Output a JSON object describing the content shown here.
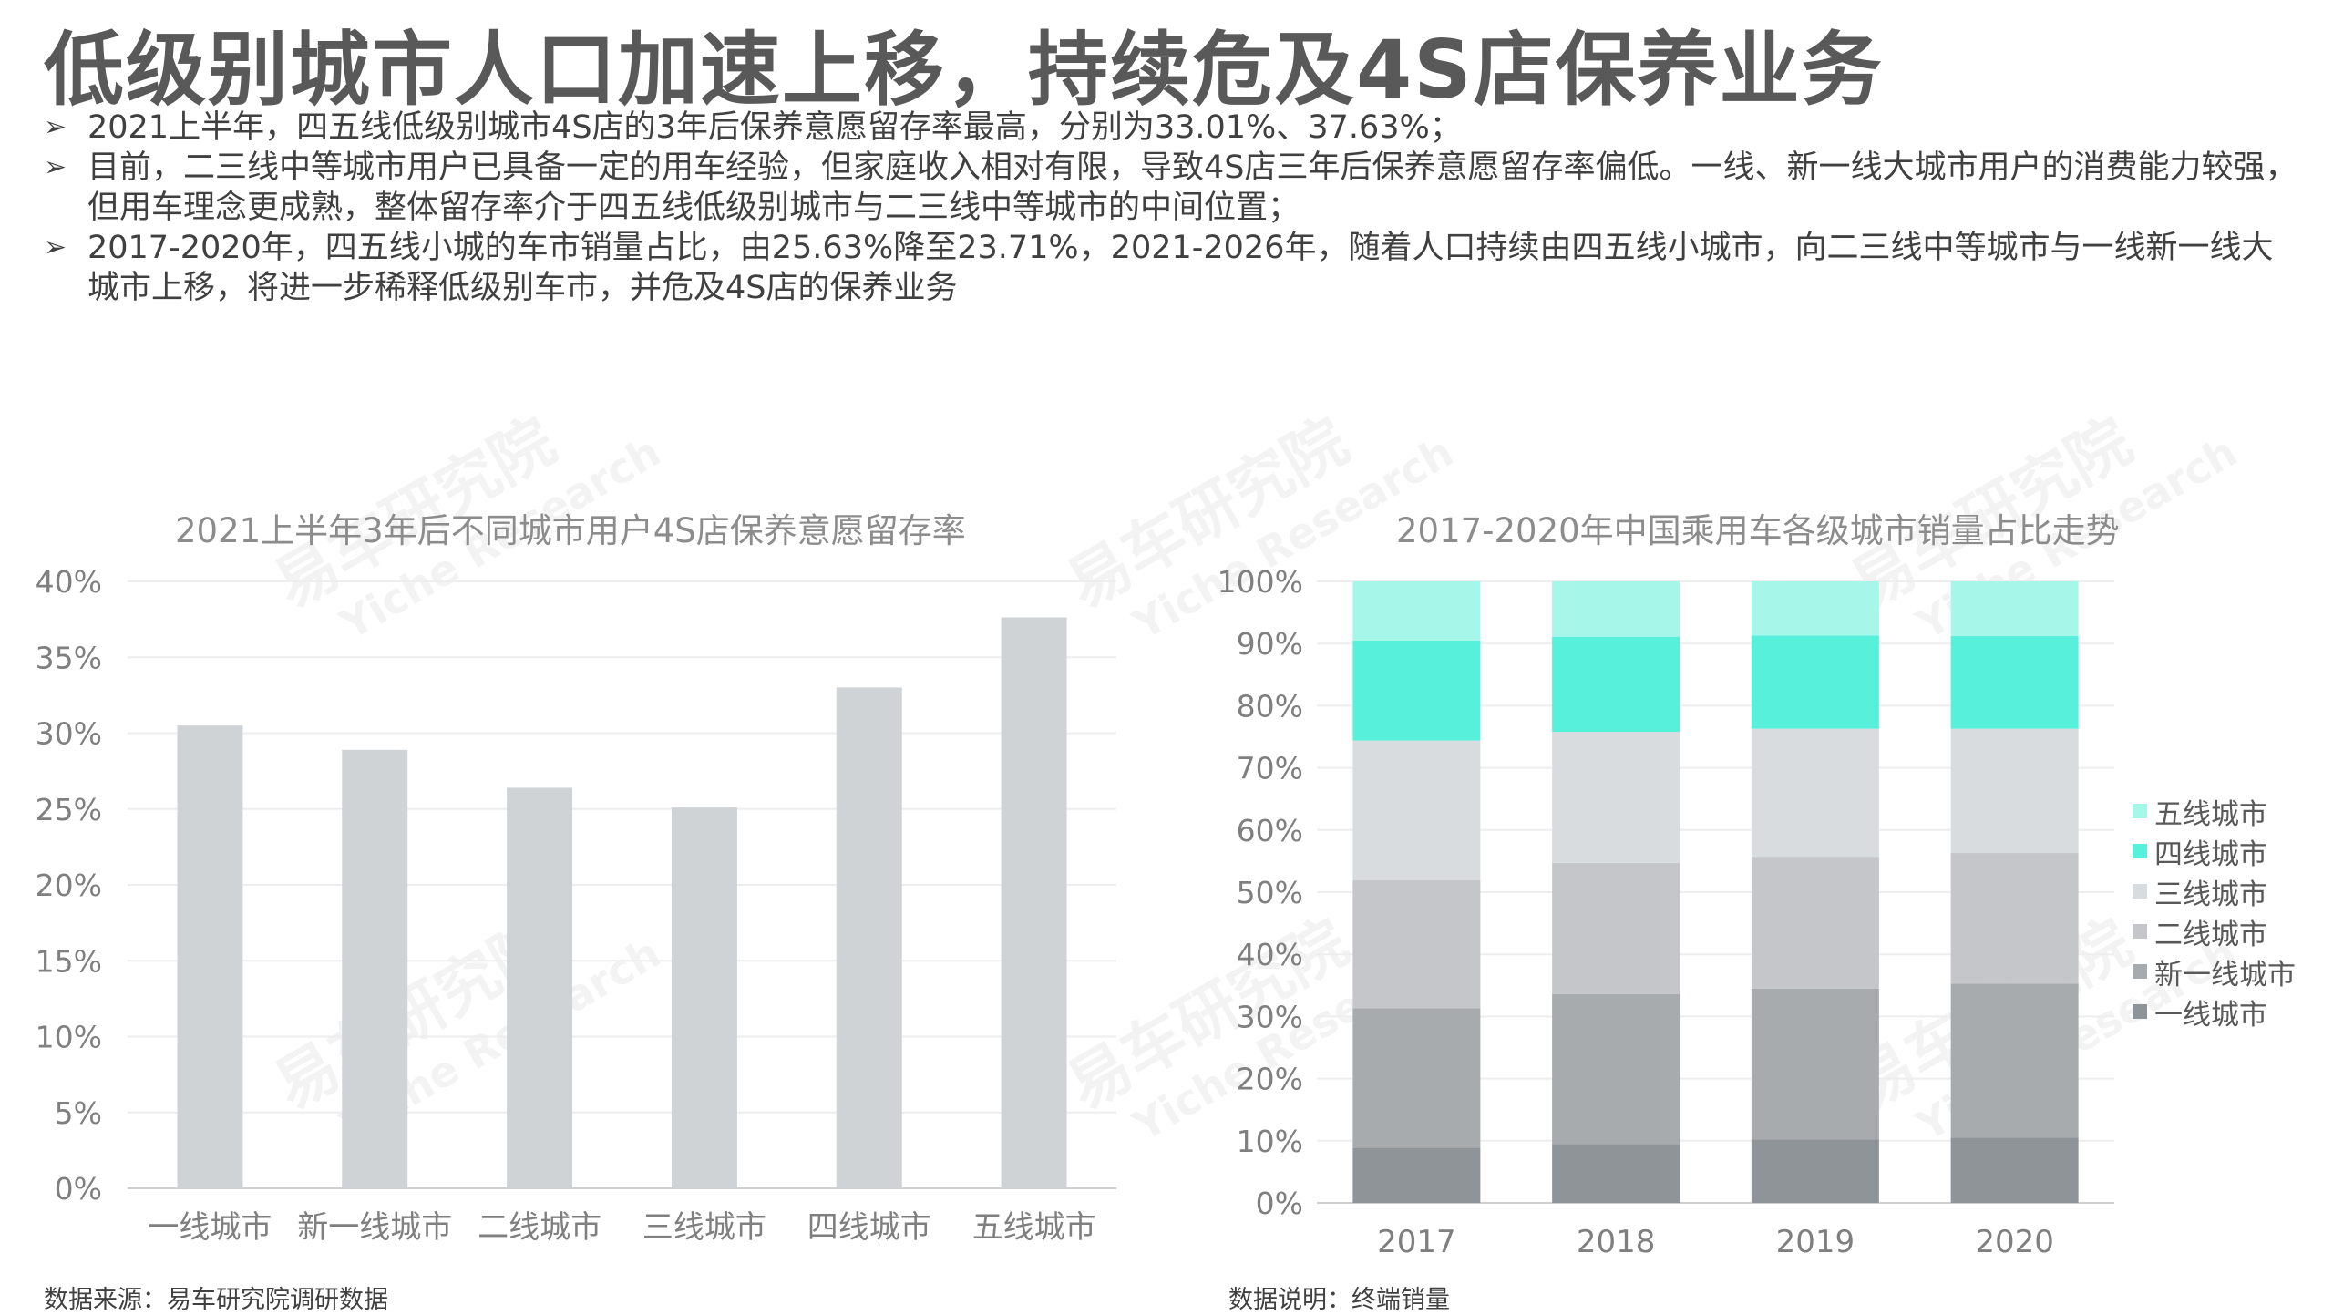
{
  "title": "低级别城市人口加速上移，持续危及4S店保养业务",
  "bullets": [
    "2021上半年，四五线低级别城市4S店的3年后保养意愿留存率最高，分别为33.01%、37.63%；",
    "目前，二三线中等城市用户已具备一定的用车经验，但家庭收入相对有限，导致4S店三年后保养意愿留存率偏低。一线、新一线大城市用户的消费能力较强，但用车理念更成熟，整体留存率介于四五线低级别城市与二三线中等城市的中间位置；",
    "2017-2020年，四五线小城的车市销量占比，由25.63%降至23.71%，2021-2026年，随着人口持续由四五线小城市，向二三线中等城市与一线新一线大城市上移，将进一步稀释低级别车市，并危及4S店的保养业务"
  ],
  "watermark": {
    "cn": "易车研究院",
    "en": "Yiche Research"
  },
  "left_source": "数据来源：易车研究院调研数据",
  "right_source": "数据说明：终端销量",
  "chart_data": [
    {
      "type": "bar",
      "title": "2021上半年3年后不同城市用户4S店保养意愿留存率",
      "categories": [
        "一线城市",
        "新一线城市",
        "二线城市",
        "三线城市",
        "四线城市",
        "五线城市"
      ],
      "values": [
        30.5,
        28.9,
        26.4,
        25.1,
        33.01,
        37.63
      ],
      "yticks": [
        "0%",
        "5%",
        "10%",
        "15%",
        "20%",
        "25%",
        "30%",
        "35%",
        "40%"
      ],
      "ylim": [
        0,
        40
      ],
      "color": "#d0d3d6",
      "grid": true
    },
    {
      "type": "bar",
      "stacked": true,
      "title": "2017-2020年中国乘用车各级城市销量占比走势",
      "categories": [
        "2017",
        "2018",
        "2019",
        "2020"
      ],
      "yticks": [
        "0%",
        "10%",
        "20%",
        "30%",
        "40%",
        "50%",
        "60%",
        "70%",
        "80%",
        "90%",
        "100%"
      ],
      "ylim": [
        0,
        100
      ],
      "legend_position": "right",
      "series": [
        {
          "name": "一线城市",
          "color": "#8f9498",
          "values": [
            8.9,
            9.5,
            10.2,
            10.5
          ]
        },
        {
          "name": "新一线城市",
          "color": "#a8abae",
          "values": [
            22.4,
            24.1,
            24.3,
            24.8
          ]
        },
        {
          "name": "二线城市",
          "color": "#c4c6c9",
          "values": [
            20.6,
            21.1,
            21.2,
            21.0
          ]
        },
        {
          "name": "三线城市",
          "color": "#d9dcdf",
          "values": [
            22.5,
            21.1,
            20.6,
            20.0
          ]
        },
        {
          "name": "四线城市",
          "color": "#57f0db",
          "values": [
            16.1,
            15.3,
            15.0,
            14.9
          ]
        },
        {
          "name": "五线城市",
          "color": "#a6f6ea",
          "values": [
            9.5,
            8.9,
            8.7,
            8.8
          ]
        }
      ]
    }
  ]
}
